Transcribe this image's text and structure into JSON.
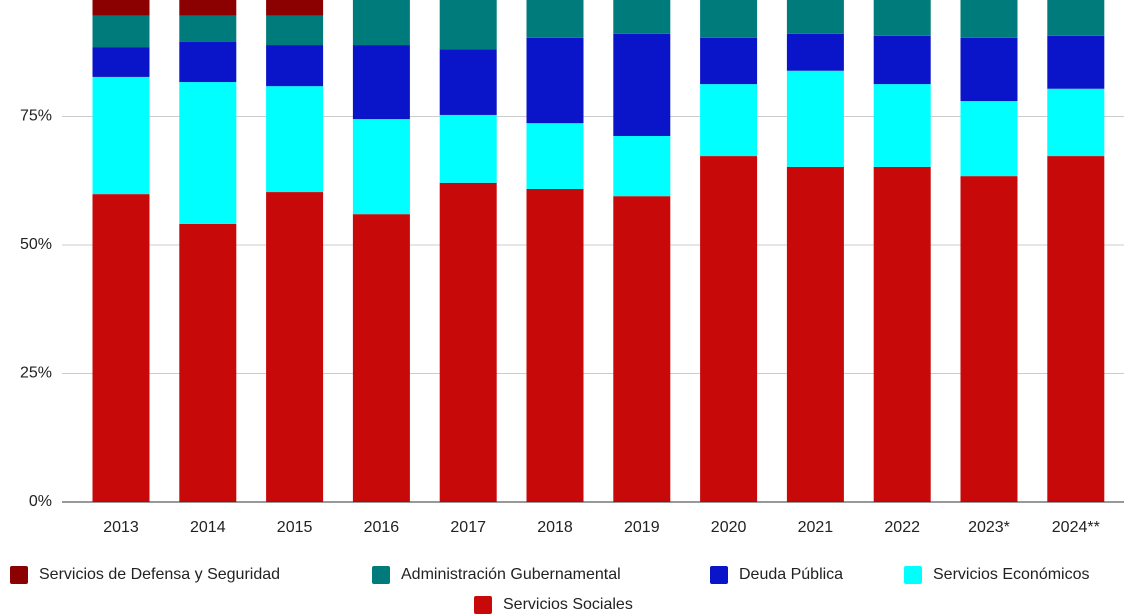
{
  "chart_data": {
    "type": "stacked_bar",
    "categories": [
      "2013",
      "2014",
      "2015",
      "2016",
      "2017",
      "2018",
      "2019",
      "2020",
      "2021",
      "2022",
      "2023*",
      "2024**"
    ],
    "series": [
      {
        "name": "Servicios Sociales",
        "color": "#c70909",
        "values": [
          59.9,
          54.1,
          60.3,
          56.0,
          62.1,
          60.9,
          59.5,
          67.3,
          65.2,
          65.2,
          63.4,
          67.3
        ]
      },
      {
        "name": "Servicios Económicos",
        "color": "#00ffff",
        "values": [
          22.8,
          27.6,
          20.6,
          18.5,
          13.2,
          12.8,
          11.7,
          14.0,
          18.7,
          16.1,
          14.6,
          13.1
        ]
      },
      {
        "name": "Deuda Pública",
        "color": "#0a14c8",
        "values": [
          5.8,
          7.8,
          8.0,
          14.4,
          12.8,
          16.6,
          19.9,
          9.0,
          7.2,
          9.4,
          12.3,
          10.3
        ]
      },
      {
        "name": "Administración Gubernamental",
        "color": "#007b7b",
        "values": [
          6.1,
          5.1,
          5.7,
          11.1,
          11.9,
          9.7,
          8.9,
          9.7,
          8.9,
          9.3,
          9.7,
          9.3
        ]
      },
      {
        "name": "Servicios de Defensa y Seguridad",
        "color": "#8b0000",
        "values": [
          5.4,
          5.4,
          5.4,
          0,
          0,
          0,
          0,
          0,
          0,
          0,
          0,
          0
        ]
      }
    ],
    "ylim": [
      0,
      100
    ],
    "yticks": [
      {
        "value": 0,
        "label": "0%"
      },
      {
        "value": 25,
        "label": "25%"
      },
      {
        "value": 50,
        "label": "50%"
      },
      {
        "value": 75,
        "label": "75%"
      }
    ],
    "grid": true
  }
}
